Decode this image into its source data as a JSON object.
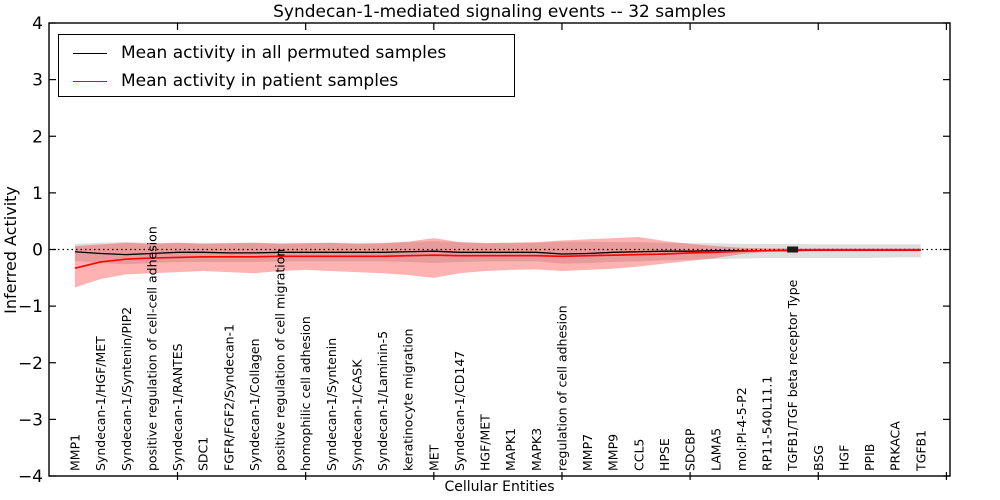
{
  "title": "Syndecan-1-mediated signaling events -- 32 samples",
  "axes": {
    "ylabel": "Inferred Activity",
    "xlabel": "Cellular Entities",
    "ytick_labels": [
      "4",
      "3",
      "2",
      "1",
      "0",
      "−1",
      "−2",
      "−3",
      "−4"
    ]
  },
  "legend": {
    "entries": [
      {
        "label": "Mean activity in all permuted samples",
        "color": "#000000"
      },
      {
        "label": "Mean activity in patient samples",
        "color": "#ff0000"
      }
    ]
  },
  "chart_data": {
    "type": "line",
    "title": "Syndecan-1-mediated signaling events -- 32 samples",
    "xlabel": "Cellular Entities",
    "ylabel": "Inferred Activity",
    "ylim": [
      -4,
      4
    ],
    "yticks": [
      4,
      3,
      2,
      1,
      0,
      -1,
      -2,
      -3,
      -4
    ],
    "grid": false,
    "legend_position": "upper left",
    "zero_line": {
      "y": 0,
      "style": "dotted",
      "color": "#000000"
    },
    "categories": [
      "MMP1",
      "Syndecan-1/HGF/MET",
      "Syndecan-1/Syntenin/PIP2",
      "positive regulation of cell-cell adhesion",
      "Syndecan-1/RANTES",
      "SDC1",
      "FGFR/FGF2/Syndecan-1",
      "Syndecan-1/Collagen",
      "positive regulation of cell migration",
      "homophilic cell adhesion",
      "Syndecan-1/Syntenin",
      "Syndecan-1/CASK",
      "Syndecan-1/Laminin-5",
      "keratinocyte migration",
      "MET",
      "Syndecan-1/CD147",
      "HGF/MET",
      "MAPK1",
      "MAPK3",
      "regulation of cell adhesion",
      "MMP7",
      "MMP9",
      "CCL5",
      "HPSE",
      "SDCBP",
      "LAMA5",
      "mol:PI-4-5-P2",
      "RP11-540L11.1",
      "TGFB1/TGF beta receptor Type",
      "BSG",
      "HGF",
      "PPIB",
      "PRKACA",
      "TGFB1"
    ],
    "series": [
      {
        "name": "Mean activity in all permuted samples",
        "color": "#000000",
        "width": 1.3,
        "values": [
          -0.04,
          -0.07,
          -0.09,
          -0.07,
          -0.05,
          -0.05,
          -0.06,
          -0.06,
          -0.05,
          -0.05,
          -0.05,
          -0.05,
          -0.05,
          -0.04,
          -0.03,
          -0.05,
          -0.05,
          -0.05,
          -0.05,
          -0.08,
          -0.07,
          -0.05,
          -0.04,
          -0.03,
          -0.03,
          -0.02,
          -0.02,
          -0.02,
          -0.02,
          -0.01,
          -0.01,
          -0.01,
          -0.01,
          -0.01
        ]
      },
      {
        "name": "Mean activity in patient samples",
        "color": "#ff0000",
        "width": 1.6,
        "values": [
          -0.33,
          -0.22,
          -0.17,
          -0.15,
          -0.14,
          -0.13,
          -0.13,
          -0.13,
          -0.12,
          -0.12,
          -0.12,
          -0.12,
          -0.12,
          -0.11,
          -0.1,
          -0.11,
          -0.11,
          -0.11,
          -0.11,
          -0.12,
          -0.11,
          -0.1,
          -0.09,
          -0.08,
          -0.06,
          -0.05,
          -0.03,
          -0.02,
          -0.01,
          -0.01,
          -0.01,
          -0.01,
          -0.01,
          -0.01
        ]
      }
    ],
    "bands": [
      {
        "name": "permuted-activity-range",
        "color": "#000000",
        "alpha": 0.13,
        "upper": [
          0.1,
          0.12,
          0.13,
          0.12,
          0.12,
          0.12,
          0.12,
          0.12,
          0.12,
          0.12,
          0.12,
          0.12,
          0.12,
          0.13,
          0.15,
          0.13,
          0.12,
          0.12,
          0.12,
          0.14,
          0.14,
          0.13,
          0.13,
          0.12,
          0.11,
          0.11,
          0.1,
          0.1,
          0.1,
          0.09,
          0.09,
          0.09,
          0.09,
          0.09
        ],
        "lower": [
          -0.2,
          -0.24,
          -0.26,
          -0.24,
          -0.22,
          -0.22,
          -0.22,
          -0.22,
          -0.21,
          -0.21,
          -0.21,
          -0.21,
          -0.21,
          -0.22,
          -0.24,
          -0.22,
          -0.21,
          -0.21,
          -0.21,
          -0.25,
          -0.24,
          -0.22,
          -0.21,
          -0.19,
          -0.18,
          -0.17,
          -0.16,
          -0.15,
          -0.15,
          -0.15,
          -0.15,
          -0.15,
          -0.14,
          -0.14
        ]
      },
      {
        "name": "patient-activity-range",
        "color": "#ff0000",
        "alpha": 0.3,
        "upper": [
          0.06,
          0.09,
          0.12,
          0.1,
          0.12,
          0.1,
          0.11,
          0.12,
          0.1,
          0.11,
          0.12,
          0.1,
          0.11,
          0.14,
          0.2,
          0.13,
          0.11,
          0.12,
          0.13,
          0.16,
          0.18,
          0.2,
          0.22,
          0.15,
          0.1,
          0.06,
          0.03,
          0.02,
          0.02,
          0.02,
          0.02,
          0.02,
          0.02,
          0.02
        ],
        "lower": [
          -0.67,
          -0.52,
          -0.44,
          -0.42,
          -0.4,
          -0.38,
          -0.4,
          -0.42,
          -0.38,
          -0.36,
          -0.38,
          -0.4,
          -0.42,
          -0.45,
          -0.5,
          -0.42,
          -0.38,
          -0.36,
          -0.35,
          -0.38,
          -0.36,
          -0.34,
          -0.3,
          -0.25,
          -0.2,
          -0.15,
          -0.08,
          -0.04,
          -0.03,
          -0.03,
          -0.03,
          -0.03,
          -0.03,
          -0.03
        ]
      }
    ],
    "marker": {
      "category_index": 28,
      "value": 0.0,
      "shape": "square",
      "color": "#1a1a1a"
    }
  }
}
